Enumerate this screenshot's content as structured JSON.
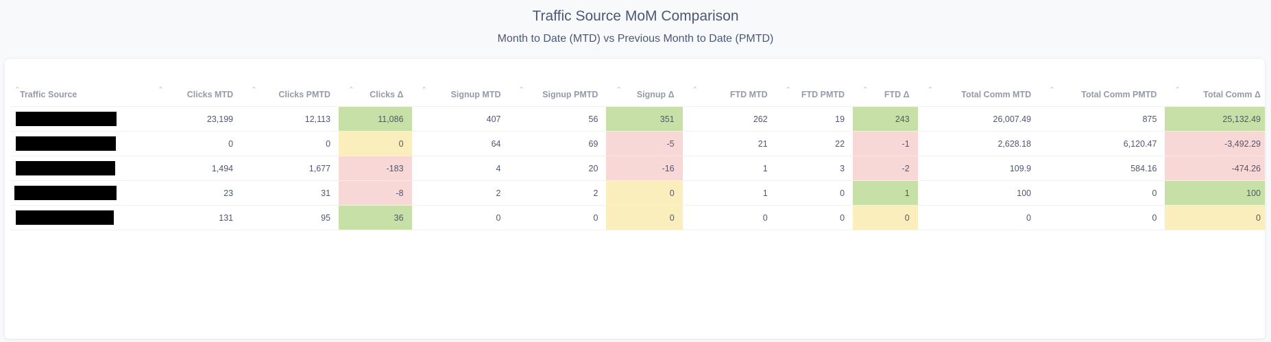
{
  "header": {
    "title": "Traffic Source MoM Comparison",
    "subtitle": "Month to Date (MTD) vs Previous Month to Date (PMTD)"
  },
  "table": {
    "columns": [
      "Traffic Source",
      "Clicks MTD",
      "Clicks PMTD",
      "Clicks Δ",
      "Signup MTD",
      "Signup PMTD",
      "Signup Δ",
      "FTD MTD",
      "FTD PMTD",
      "FTD Δ",
      "Total Comm MTD",
      "Total Comm PMTD",
      "Total Comm Δ"
    ],
    "sort_icon": "sort-arrow-icon",
    "delta_colors": {
      "positive": "#c6e0a8",
      "negative": "#f8d7d7",
      "zero": "#fbeebd"
    },
    "rows": [
      [
        "",
        "23,199",
        "12,113",
        "11,086",
        "407",
        "56",
        "351",
        "262",
        "19",
        "243",
        "26,007.49",
        "875",
        "25,132.49"
      ],
      [
        "",
        "0",
        "0",
        "0",
        "64",
        "69",
        "-5",
        "21",
        "22",
        "-1",
        "2,628.18",
        "6,120.47",
        "-3,492.29"
      ],
      [
        "",
        "1,494",
        "1,677",
        "-183",
        "4",
        "20",
        "-16",
        "1",
        "3",
        "-2",
        "109.9",
        "584.16",
        "-474.26"
      ],
      [
        "",
        "23",
        "31",
        "-8",
        "2",
        "2",
        "0",
        "1",
        "0",
        "1",
        "100",
        "0",
        "100"
      ],
      [
        "",
        "131",
        "95",
        "36",
        "0",
        "0",
        "0",
        "0",
        "0",
        "0",
        "0",
        "0",
        "0"
      ]
    ]
  }
}
